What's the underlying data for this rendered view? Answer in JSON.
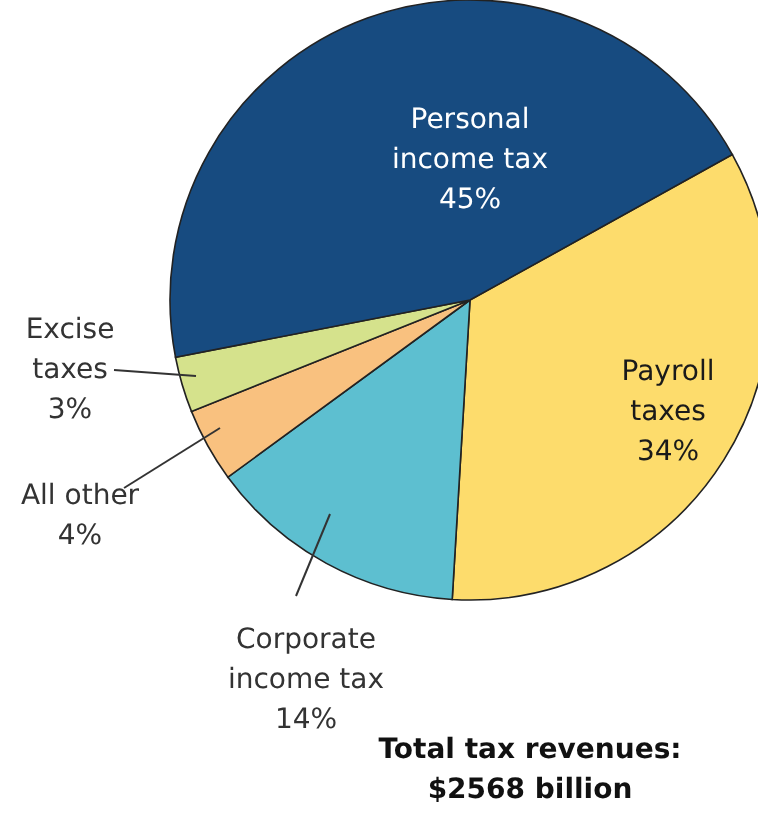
{
  "chart_data": {
    "type": "pie",
    "title": "Total tax revenues: $2568 billion",
    "categories": [
      "Payroll taxes",
      "Corporate income tax",
      "All other",
      "Excise taxes",
      "Personal income tax"
    ],
    "values": [
      34,
      14,
      4,
      3,
      45
    ],
    "colors": [
      "#fddc6c",
      "#5dbfd0",
      "#f9c17f",
      "#d5e28c",
      "#174b80"
    ],
    "value_labels": [
      "34%",
      "14%",
      "4%",
      "3%",
      "45%"
    ]
  }
}
